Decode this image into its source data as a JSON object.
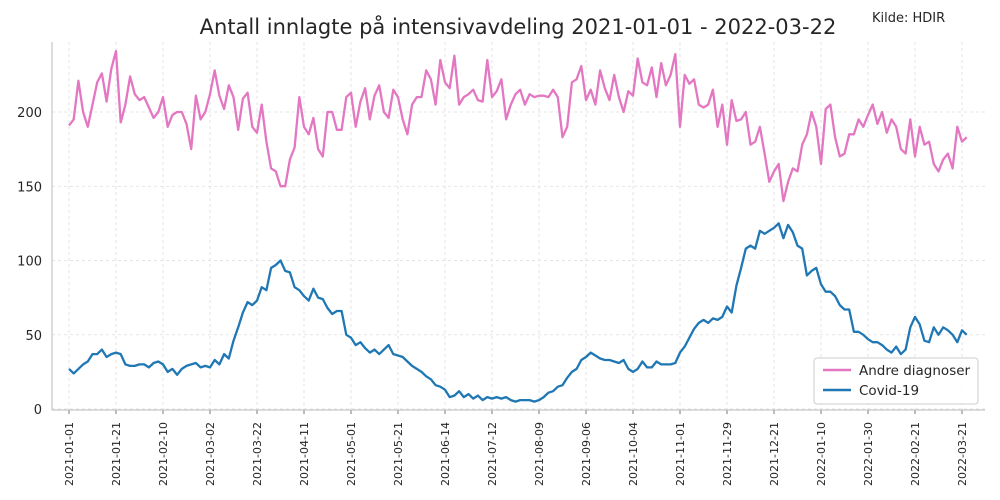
{
  "chart_data": {
    "type": "line",
    "title": "Antall innlagte på intensivavdeling 2021-01-01 - 2022-03-22",
    "source": "Kilde: HDIR",
    "xlabel": "",
    "ylabel": "",
    "x_tick_labels": [
      "2021-01-01",
      "2021-01-21",
      "2021-02-10",
      "2021-03-02",
      "2021-03-22",
      "2021-04-11",
      "2021-05-01",
      "2021-05-21",
      "2021-06-14",
      "2021-07-12",
      "2021-08-09",
      "2021-09-06",
      "2021-10-04",
      "2021-11-01",
      "2021-11-29",
      "2021-12-21",
      "2022-01-10",
      "2022-01-30",
      "2022-02-21",
      "2022-03-21"
    ],
    "x_tick_step_observations": 20,
    "sample_step_observations": 2,
    "y_ticks": [
      0,
      50,
      100,
      150,
      200
    ],
    "ylim": [
      0,
      248
    ],
    "grid": true,
    "legend_position": "lower-right",
    "series": [
      {
        "name": "Andre diagnoser",
        "color": "#e377c2",
        "values": [
          191,
          195,
          221,
          200,
          190,
          205,
          220,
          226,
          207,
          229,
          241,
          193,
          205,
          224,
          212,
          208,
          210,
          203,
          196,
          200,
          210,
          190,
          198,
          200,
          200,
          192,
          175,
          211,
          195,
          200,
          212,
          228,
          211,
          202,
          218,
          210,
          188,
          209,
          213,
          190,
          186,
          205,
          180,
          162,
          160,
          150,
          150,
          168,
          176,
          210,
          190,
          185,
          196,
          175,
          170,
          200,
          200,
          188,
          188,
          210,
          213,
          190,
          207,
          216,
          195,
          211,
          218,
          200,
          196,
          215,
          210,
          195,
          185,
          205,
          210,
          210,
          228,
          222,
          205,
          235,
          220,
          216,
          238,
          205,
          210,
          212,
          215,
          208,
          207,
          235,
          210,
          214,
          222,
          195,
          205,
          212,
          215,
          205,
          212,
          210,
          211,
          211,
          210,
          215,
          210,
          183,
          190,
          220,
          222,
          231,
          208,
          215,
          205,
          228,
          216,
          208,
          225,
          210,
          200,
          214,
          211,
          236,
          220,
          218,
          230,
          210,
          233,
          218,
          225,
          239,
          190,
          225,
          219,
          222,
          205,
          203,
          205,
          215,
          190,
          205,
          178,
          208,
          194,
          195,
          200,
          178,
          180,
          190,
          172,
          153,
          160,
          165,
          140,
          153,
          162,
          160,
          178,
          185,
          200,
          190,
          165,
          202,
          205,
          183,
          170,
          172,
          185,
          185,
          195,
          190,
          198,
          205,
          192,
          200,
          186,
          195,
          190,
          175,
          172,
          195,
          170,
          190,
          178,
          180,
          165,
          160,
          168,
          172,
          162,
          190,
          180,
          183
        ]
      },
      {
        "name": "Covid-19",
        "color": "#1f77b4",
        "values": [
          27,
          24,
          27,
          30,
          32,
          37,
          37,
          40,
          35,
          37,
          38,
          37,
          30,
          29,
          29,
          30,
          30,
          28,
          31,
          32,
          30,
          25,
          27,
          23,
          27,
          29,
          30,
          31,
          28,
          29,
          28,
          33,
          30,
          37,
          34,
          46,
          55,
          65,
          72,
          70,
          73,
          82,
          80,
          95,
          97,
          100,
          93,
          92,
          82,
          80,
          76,
          73,
          81,
          75,
          74,
          68,
          64,
          66,
          66,
          50,
          48,
          43,
          45,
          41,
          38,
          40,
          37,
          40,
          43,
          37,
          36,
          35,
          32,
          29,
          27,
          25,
          22,
          20,
          16,
          15,
          13,
          8,
          9,
          12,
          8,
          10,
          7,
          9,
          6,
          8,
          7,
          8,
          7,
          8,
          6,
          5,
          6,
          6,
          6,
          5,
          6,
          8,
          11,
          12,
          15,
          16,
          21,
          25,
          27,
          33,
          35,
          38,
          36,
          34,
          33,
          33,
          32,
          31,
          33,
          27,
          25,
          27,
          32,
          28,
          28,
          32,
          30,
          30,
          30,
          31,
          38,
          42,
          48,
          54,
          58,
          60,
          58,
          61,
          60,
          62,
          69,
          65,
          83,
          95,
          108,
          110,
          108,
          120,
          118,
          120,
          122,
          125,
          115,
          124,
          119,
          110,
          108,
          90,
          93,
          95,
          84,
          79,
          79,
          76,
          70,
          67,
          67,
          52,
          52,
          50,
          47,
          45,
          45,
          43,
          40,
          38,
          42,
          37,
          40,
          55,
          62,
          57,
          46,
          45,
          55,
          50,
          55,
          53,
          50,
          45,
          53,
          50
        ]
      }
    ]
  }
}
